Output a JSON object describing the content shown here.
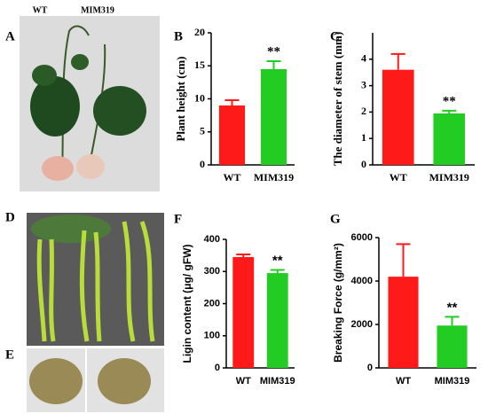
{
  "photo_a": {
    "panel": "A",
    "labels": [
      "WT",
      "MIM319"
    ]
  },
  "photo_d": {
    "panel": "D"
  },
  "photo_e": {
    "panel": "E"
  },
  "chart_data": [
    {
      "type": "bar",
      "panel": "B",
      "ylabel": "Plant height (cm)",
      "categories": [
        "WT",
        "MIM319"
      ],
      "values": [
        9,
        14.5
      ],
      "errors": [
        0.8,
        1.2
      ],
      "colors": [
        "#ff1a1a",
        "#22cc22"
      ],
      "ylim": [
        0,
        20
      ],
      "yticks": [
        0,
        5,
        10,
        15,
        20
      ],
      "annotation": "**"
    },
    {
      "type": "bar",
      "panel": "C",
      "ylabel": "The diameter of stem (mm)",
      "categories": [
        "WT",
        "MIM319"
      ],
      "values": [
        3.6,
        1.95
      ],
      "errors": [
        0.6,
        0.1
      ],
      "colors": [
        "#ff1a1a",
        "#22cc22"
      ],
      "ylim": [
        0,
        5
      ],
      "yticks": [
        0,
        1,
        2,
        3,
        4
      ],
      "annotation": "**"
    },
    {
      "type": "bar",
      "panel": "F",
      "ylabel": "Ligin content  (μg/ gFW)",
      "categories": [
        "WT",
        "MIM319"
      ],
      "values": [
        345,
        295
      ],
      "errors": [
        8,
        10
      ],
      "colors": [
        "#ff1a1a",
        "#22cc22"
      ],
      "ylim": [
        0,
        400
      ],
      "yticks": [
        0,
        100,
        200,
        300,
        400
      ],
      "annotation": "**"
    },
    {
      "type": "bar",
      "panel": "G",
      "ylabel": "Breaking Force (g/mm²)",
      "categories": [
        "WT",
        "MIM319"
      ],
      "values": [
        4200,
        1950
      ],
      "errors": [
        1500,
        400
      ],
      "colors": [
        "#ff1a1a",
        "#22cc22"
      ],
      "ylim": [
        0,
        6000
      ],
      "yticks": [
        0,
        2000,
        4000,
        6000
      ],
      "annotation": "**"
    }
  ]
}
